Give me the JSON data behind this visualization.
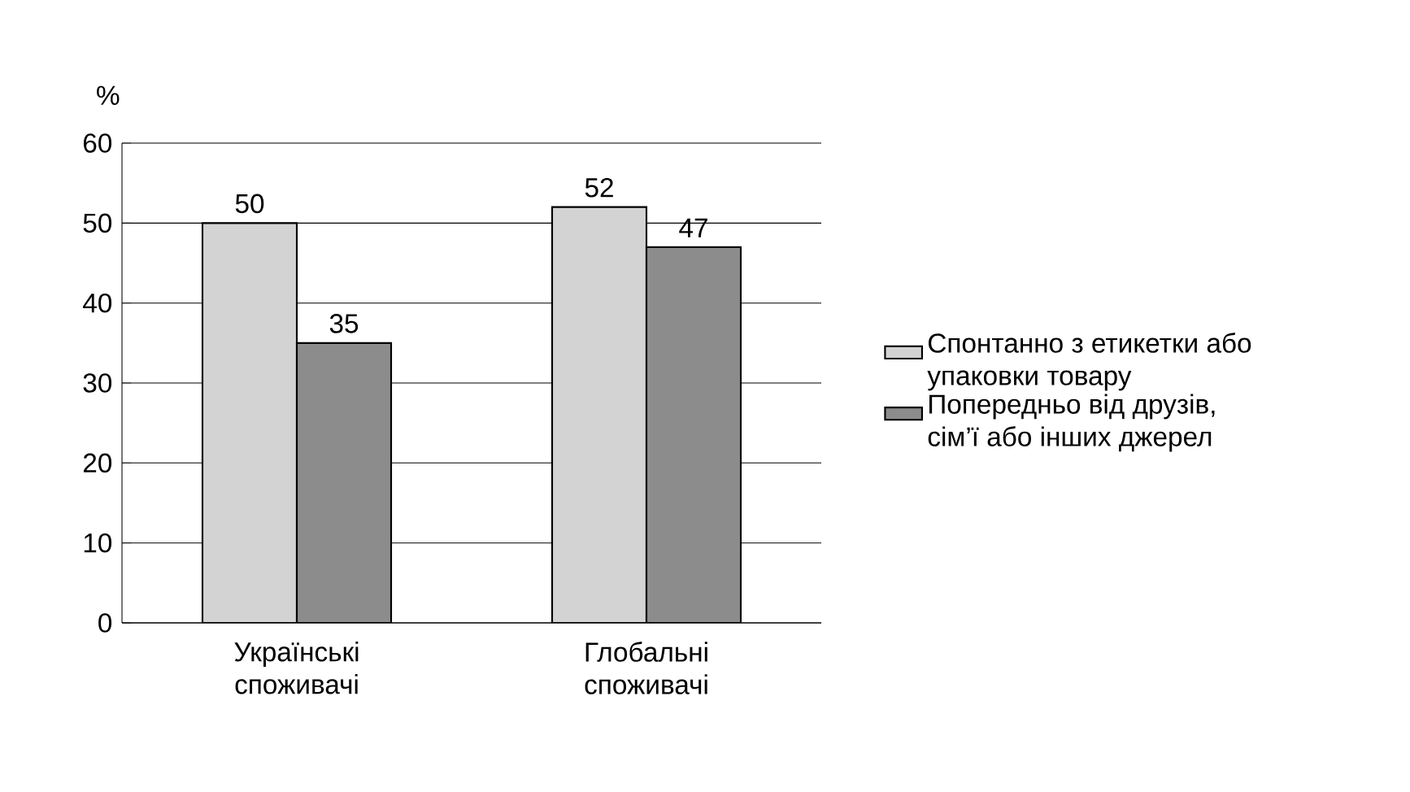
{
  "chart_data": {
    "type": "bar",
    "ylabel": "%",
    "categories": [
      "Українські споживачі",
      "Глобальні споживачі"
    ],
    "series": [
      {
        "name": "Спонтанно з етикетки або упаковки товару",
        "color": "#d3d3d3",
        "values": [
          50,
          52
        ]
      },
      {
        "name": "Попередньо від друзів, сім’ї або інших джерел",
        "color": "#8c8c8c",
        "values": [
          35,
          47
        ]
      }
    ],
    "ylim": [
      0,
      60
    ],
    "yticks": [
      0,
      10,
      20,
      30,
      40,
      50,
      60
    ],
    "grid": "y",
    "legend": "right",
    "data_labels": true
  }
}
